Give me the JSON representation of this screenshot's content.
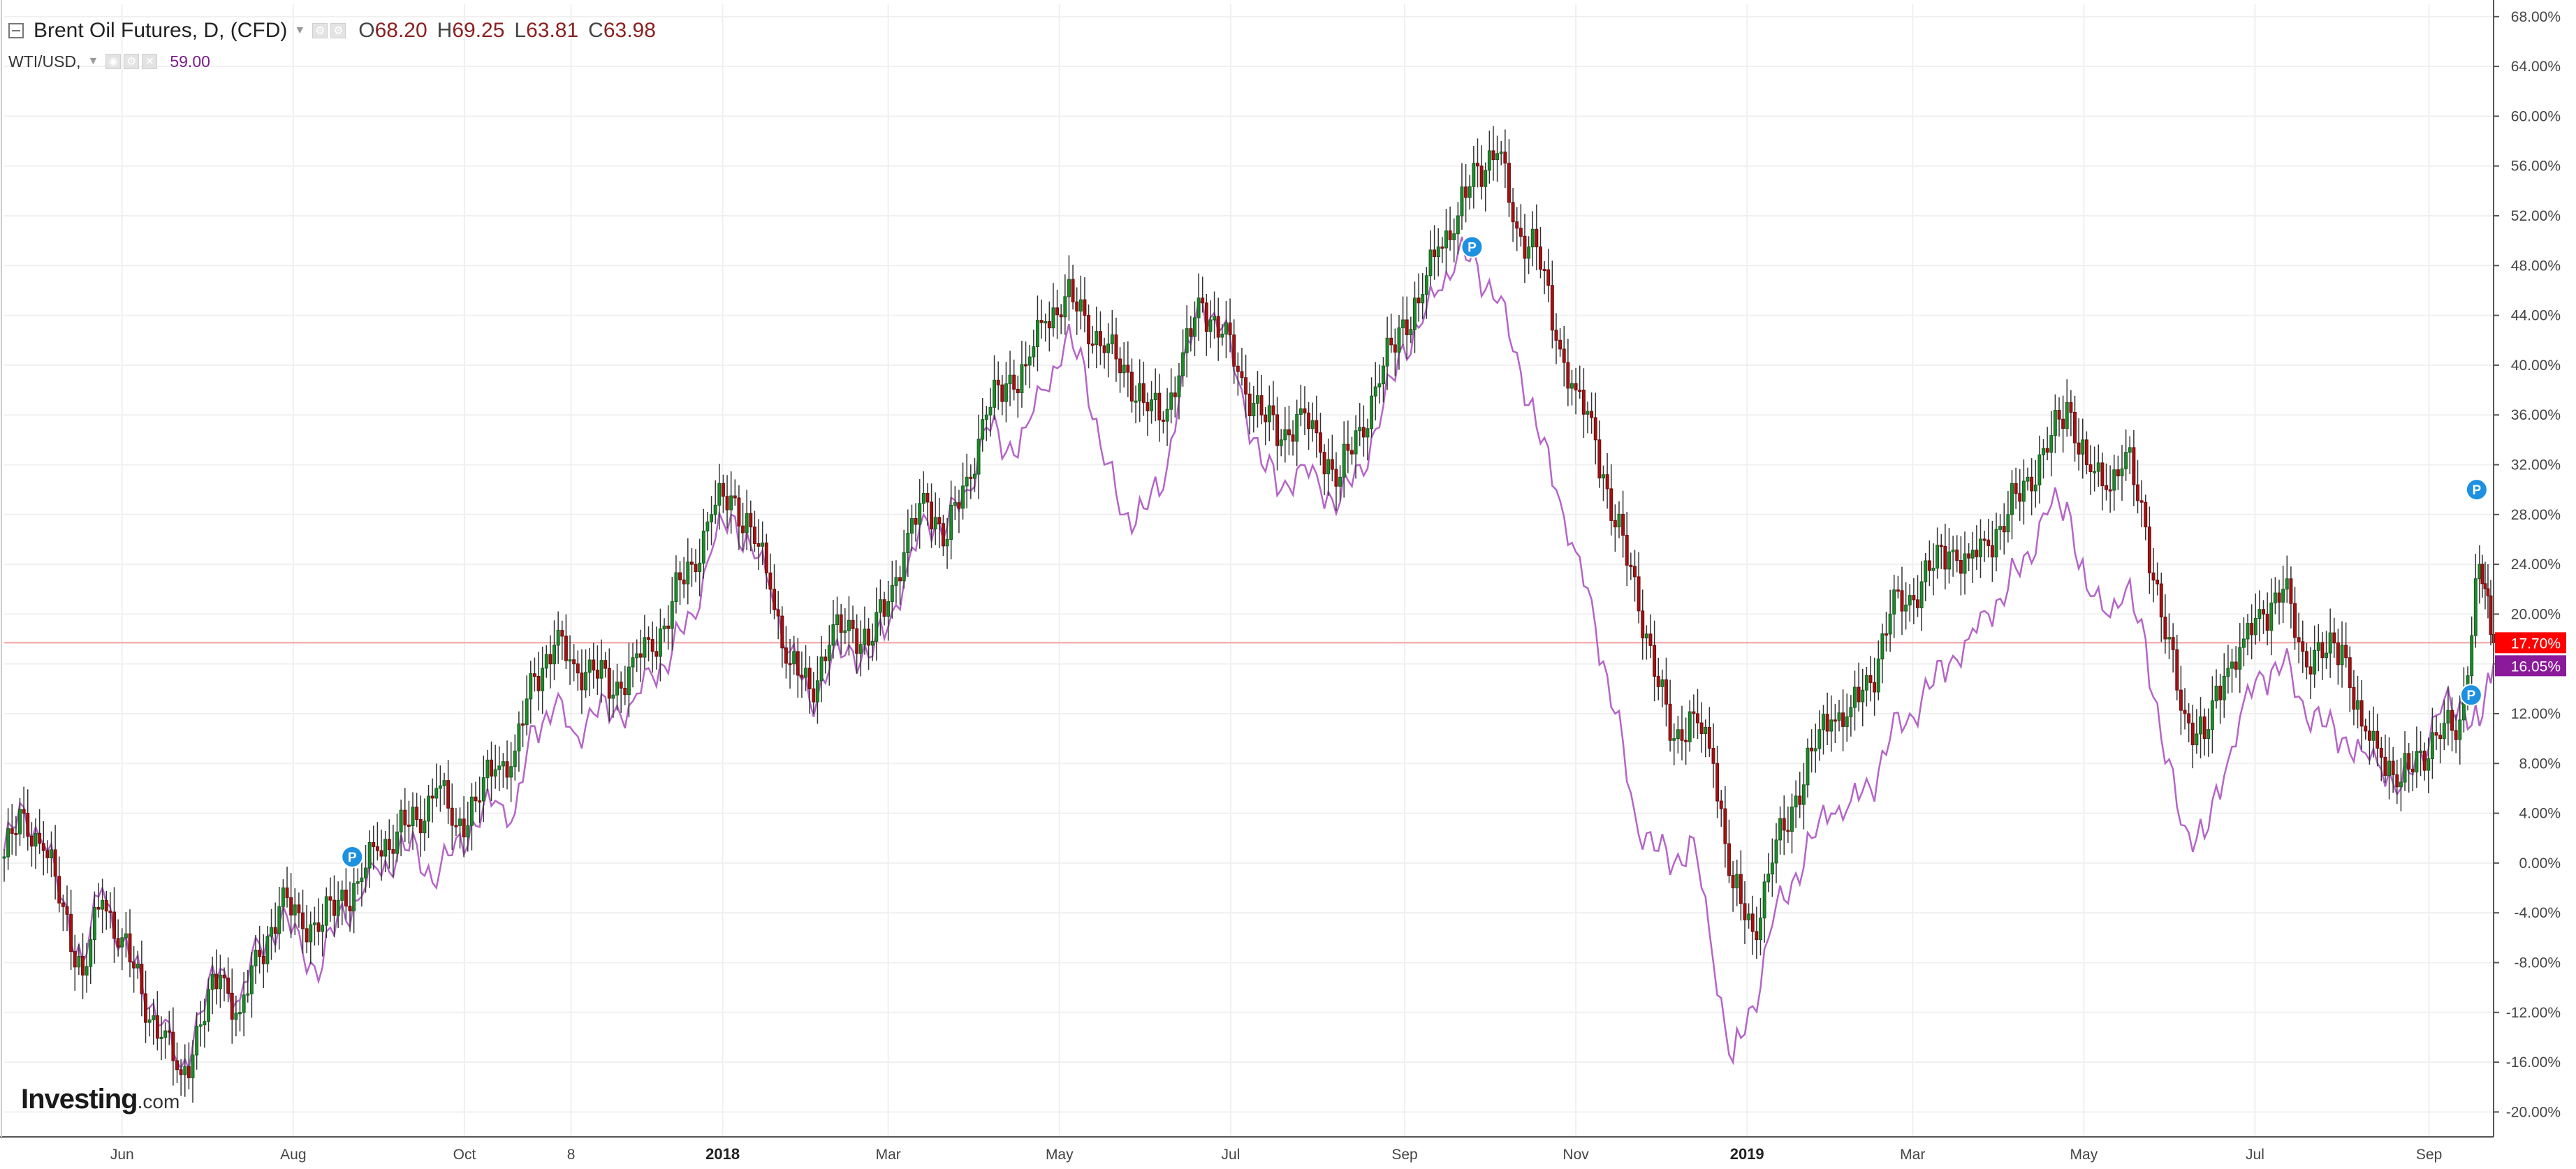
{
  "legend": {
    "main_title": "Brent Oil Futures, D, (CFD)",
    "open_label": "O",
    "open_value": "68.20",
    "high_label": "H",
    "high_value": "69.25",
    "low_label": "L",
    "low_value": "63.81",
    "close_label": "C",
    "close_value": "63.98",
    "compare_symbol": "WTI/USD,",
    "compare_value": "59.00"
  },
  "watermark": {
    "brand": "Investing",
    "suffix": ".com"
  },
  "colors": {
    "candle_up": "#1e8a2a",
    "candle_down": "#a31212",
    "wick": "#333333",
    "compare_line": "#b565c8",
    "current_line": "#f2a0a0",
    "brent_badge": "#ff0000",
    "wti_badge": "#8b1a9a",
    "marker": "#1e90e0",
    "grid": "#f0f0f0"
  },
  "chart_data": {
    "type": "line",
    "title": "Brent Oil Futures, D, (CFD)",
    "y_unit": "%",
    "ylim": [
      -22,
      69
    ],
    "y_ticks": [
      "68.00%",
      "64.00%",
      "60.00%",
      "56.00%",
      "52.00%",
      "48.00%",
      "44.00%",
      "40.00%",
      "36.00%",
      "32.00%",
      "28.00%",
      "24.00%",
      "20.00%",
      "16.00%",
      "12.00%",
      "8.00%",
      "4.00%",
      "0.00%",
      "-4.00%",
      "-8.00%",
      "-12.00%",
      "-16.00%",
      "-20.00%"
    ],
    "x_ticks": [
      {
        "label": "Jun",
        "date": "2017-06-01"
      },
      {
        "label": "Aug",
        "date": "2017-08-01"
      },
      {
        "label": "Oct",
        "date": "2017-10-01"
      },
      {
        "label": "8",
        "date": "2017-11-08"
      },
      {
        "label": "2018",
        "date": "2018-01-01",
        "bold": true
      },
      {
        "label": "Mar",
        "date": "2018-03-01"
      },
      {
        "label": "May",
        "date": "2018-05-01"
      },
      {
        "label": "Jul",
        "date": "2018-07-01"
      },
      {
        "label": "Sep",
        "date": "2018-09-01"
      },
      {
        "label": "Nov",
        "date": "2018-11-01"
      },
      {
        "label": "2019",
        "date": "2019-01-01",
        "bold": true
      },
      {
        "label": "Mar",
        "date": "2019-03-01"
      },
      {
        "label": "May",
        "date": "2019-05-01"
      },
      {
        "label": "Jul",
        "date": "2019-07-01"
      },
      {
        "label": "Sep",
        "date": "2019-09-01"
      }
    ],
    "grid": true,
    "x_range": [
      "2017-04-20",
      "2019-09-24"
    ],
    "series": [
      {
        "name": "Brent Oil Futures, D, (CFD)",
        "style": "candlestick",
        "x": [
          "2017-04-20",
          "2017-04-27",
          "2017-05-04",
          "2017-05-11",
          "2017-05-18",
          "2017-05-25",
          "2017-06-01",
          "2017-06-08",
          "2017-06-15",
          "2017-06-22",
          "2017-06-29",
          "2017-07-06",
          "2017-07-13",
          "2017-07-20",
          "2017-07-27",
          "2017-08-03",
          "2017-08-10",
          "2017-08-17",
          "2017-08-24",
          "2017-08-31",
          "2017-09-07",
          "2017-09-14",
          "2017-09-21",
          "2017-09-28",
          "2017-10-05",
          "2017-10-12",
          "2017-10-19",
          "2017-10-26",
          "2017-11-02",
          "2017-11-09",
          "2017-11-16",
          "2017-11-23",
          "2017-11-30",
          "2017-12-07",
          "2017-12-14",
          "2017-12-21",
          "2017-12-28",
          "2018-01-04",
          "2018-01-11",
          "2018-01-18",
          "2018-01-25",
          "2018-02-01",
          "2018-02-08",
          "2018-02-15",
          "2018-02-22",
          "2018-03-01",
          "2018-03-08",
          "2018-03-15",
          "2018-03-22",
          "2018-03-29",
          "2018-04-05",
          "2018-04-12",
          "2018-04-19",
          "2018-04-26",
          "2018-05-03",
          "2018-05-10",
          "2018-05-17",
          "2018-05-24",
          "2018-05-31",
          "2018-06-07",
          "2018-06-14",
          "2018-06-21",
          "2018-06-28",
          "2018-07-05",
          "2018-07-12",
          "2018-07-19",
          "2018-07-26",
          "2018-08-02",
          "2018-08-09",
          "2018-08-16",
          "2018-08-23",
          "2018-08-30",
          "2018-09-06",
          "2018-09-13",
          "2018-09-20",
          "2018-09-27",
          "2018-10-04",
          "2018-10-11",
          "2018-10-18",
          "2018-10-25",
          "2018-11-01",
          "2018-11-08",
          "2018-11-15",
          "2018-11-22",
          "2018-11-29",
          "2018-12-06",
          "2018-12-13",
          "2018-12-20",
          "2018-12-27",
          "2019-01-03",
          "2019-01-10",
          "2019-01-17",
          "2019-01-24",
          "2019-01-31",
          "2019-02-07",
          "2019-02-14",
          "2019-02-21",
          "2019-02-28",
          "2019-03-07",
          "2019-03-14",
          "2019-03-21",
          "2019-03-28",
          "2019-04-04",
          "2019-04-11",
          "2019-04-18",
          "2019-04-25",
          "2019-05-02",
          "2019-05-09",
          "2019-05-16",
          "2019-05-23",
          "2019-05-30",
          "2019-06-06",
          "2019-06-13",
          "2019-06-20",
          "2019-06-27",
          "2019-07-04",
          "2019-07-11",
          "2019-07-18",
          "2019-07-25",
          "2019-08-01",
          "2019-08-08",
          "2019-08-15",
          "2019-08-22",
          "2019-08-29",
          "2019-09-05",
          "2019-09-12",
          "2019-09-19",
          "2019-09-24"
        ],
        "values": [
          0.5,
          4.0,
          1.0,
          -3.5,
          -9.0,
          -3.0,
          -6.0,
          -10.5,
          -14.0,
          -17.0,
          -13.0,
          -9.0,
          -12.0,
          -7.5,
          -3.5,
          -4.0,
          -5.5,
          -3.0,
          -1.5,
          1.0,
          2.5,
          3.5,
          6.0,
          3.0,
          5.0,
          7.5,
          9.0,
          15.0,
          17.5,
          16.0,
          15.5,
          13.5,
          16.5,
          17.0,
          21.0,
          24.0,
          28.0,
          29.5,
          27.0,
          22.0,
          16.0,
          14.0,
          17.5,
          19.5,
          17.5,
          21.0,
          26.5,
          29.0,
          26.0,
          31.0,
          36.0,
          38.5,
          40.0,
          43.5,
          45.5,
          44.0,
          41.0,
          40.0,
          37.0,
          35.5,
          41.0,
          45.0,
          42.5,
          39.0,
          36.0,
          34.0,
          36.5,
          33.0,
          31.0,
          35.0,
          38.5,
          43.0,
          45.0,
          49.5,
          52.0,
          56.0,
          57.0,
          51.0,
          49.5,
          42.0,
          38.0,
          34.0,
          27.0,
          23.0,
          15.0,
          10.0,
          12.0,
          8.0,
          -2.0,
          -5.5,
          0.0,
          4.5,
          9.0,
          11.5,
          12.5,
          14.5,
          20.0,
          21.5,
          23.5,
          25.0,
          24.5,
          25.5,
          28.0,
          31.0,
          33.0,
          37.0,
          32.0,
          30.0,
          33.0,
          27.0,
          18.0,
          12.0,
          10.0,
          15.0,
          18.0,
          20.0,
          22.0,
          17.0,
          16.5,
          17.5,
          11.0,
          8.5,
          6.5,
          9.0,
          10.0,
          11.5,
          24.0,
          17.7
        ]
      },
      {
        "name": "WTI/USD,",
        "style": "line",
        "x": [
          "2017-04-20",
          "2017-04-27",
          "2017-05-04",
          "2017-05-11",
          "2017-05-18",
          "2017-05-25",
          "2017-06-01",
          "2017-06-08",
          "2017-06-15",
          "2017-06-22",
          "2017-06-29",
          "2017-07-06",
          "2017-07-13",
          "2017-07-20",
          "2017-07-27",
          "2017-08-03",
          "2017-08-10",
          "2017-08-17",
          "2017-08-24",
          "2017-08-31",
          "2017-09-07",
          "2017-09-14",
          "2017-09-21",
          "2017-09-28",
          "2017-10-05",
          "2017-10-12",
          "2017-10-19",
          "2017-10-26",
          "2017-11-02",
          "2017-11-09",
          "2017-11-16",
          "2017-11-23",
          "2017-11-30",
          "2017-12-07",
          "2017-12-14",
          "2017-12-21",
          "2017-12-28",
          "2018-01-04",
          "2018-01-11",
          "2018-01-18",
          "2018-01-25",
          "2018-02-01",
          "2018-02-08",
          "2018-02-15",
          "2018-02-22",
          "2018-03-01",
          "2018-03-08",
          "2018-03-15",
          "2018-03-22",
          "2018-03-29",
          "2018-04-05",
          "2018-04-12",
          "2018-04-19",
          "2018-04-26",
          "2018-05-03",
          "2018-05-10",
          "2018-05-17",
          "2018-05-24",
          "2018-05-31",
          "2018-06-07",
          "2018-06-14",
          "2018-06-21",
          "2018-06-28",
          "2018-07-05",
          "2018-07-12",
          "2018-07-19",
          "2018-07-26",
          "2018-08-02",
          "2018-08-09",
          "2018-08-16",
          "2018-08-23",
          "2018-08-30",
          "2018-09-06",
          "2018-09-13",
          "2018-09-20",
          "2018-09-27",
          "2018-10-04",
          "2018-10-11",
          "2018-10-18",
          "2018-10-25",
          "2018-11-01",
          "2018-11-08",
          "2018-11-15",
          "2018-11-22",
          "2018-11-29",
          "2018-12-06",
          "2018-12-13",
          "2018-12-20",
          "2018-12-27",
          "2019-01-03",
          "2019-01-10",
          "2019-01-17",
          "2019-01-24",
          "2019-01-31",
          "2019-02-07",
          "2019-02-14",
          "2019-02-21",
          "2019-02-28",
          "2019-03-07",
          "2019-03-14",
          "2019-03-21",
          "2019-03-28",
          "2019-04-04",
          "2019-04-11",
          "2019-04-18",
          "2019-04-25",
          "2019-05-02",
          "2019-05-09",
          "2019-05-16",
          "2019-05-23",
          "2019-05-30",
          "2019-06-06",
          "2019-06-13",
          "2019-06-20",
          "2019-06-27",
          "2019-07-04",
          "2019-07-11",
          "2019-07-18",
          "2019-07-25",
          "2019-08-01",
          "2019-08-08",
          "2019-08-15",
          "2019-08-22",
          "2019-08-29",
          "2019-09-05",
          "2019-09-12",
          "2019-09-19",
          "2019-09-24"
        ],
        "values": [
          1.0,
          4.5,
          1.5,
          -3.0,
          -8.0,
          -2.0,
          -6.5,
          -9.5,
          -13.0,
          -16.5,
          -12.0,
          -8.5,
          -11.0,
          -6.5,
          -5.0,
          -5.5,
          -9.5,
          -4.0,
          -3.0,
          -0.5,
          0.5,
          1.5,
          -2.0,
          2.0,
          3.0,
          5.0,
          4.0,
          11.0,
          12.5,
          10.5,
          12.0,
          12.0,
          13.0,
          15.0,
          17.0,
          20.0,
          25.0,
          28.0,
          25.5,
          22.0,
          17.0,
          13.0,
          15.5,
          17.5,
          16.5,
          19.0,
          24.0,
          27.5,
          27.0,
          30.0,
          35.0,
          33.0,
          35.0,
          38.0,
          42.0,
          40.0,
          32.0,
          28.0,
          28.5,
          30.0,
          40.0,
          45.0,
          43.0,
          38.0,
          32.0,
          30.0,
          32.0,
          30.0,
          29.0,
          32.0,
          35.0,
          41.0,
          43.0,
          46.0,
          49.0,
          48.0,
          45.0,
          41.0,
          35.0,
          30.0,
          25.0,
          19.0,
          12.0,
          4.0,
          1.0,
          0.0,
          2.0,
          -8.0,
          -16.0,
          -11.5,
          -5.0,
          -1.5,
          2.0,
          4.0,
          5.0,
          6.0,
          10.0,
          12.0,
          14.0,
          16.0,
          18.0,
          20.0,
          22.0,
          25.0,
          28.0,
          29.0,
          22.0,
          20.0,
          22.0,
          18.0,
          8.0,
          3.0,
          2.0,
          7.0,
          13.0,
          15.0,
          16.0,
          13.0,
          11.0,
          10.0,
          9.0,
          7.5,
          6.0,
          9.0,
          12.0,
          13.0,
          11.0,
          16.05
        ]
      }
    ],
    "last_values": {
      "brent": "17.70%",
      "wti": "16.05%"
    },
    "markers": [
      {
        "date": "2017-08-22",
        "value": 0.5,
        "label": "P"
      },
      {
        "date": "2018-09-25",
        "value": 49.5,
        "label": "P"
      },
      {
        "date": "2019-09-18",
        "value": 30.0,
        "label": "P"
      },
      {
        "date": "2019-09-16",
        "value": 13.5,
        "label": "P"
      }
    ]
  }
}
